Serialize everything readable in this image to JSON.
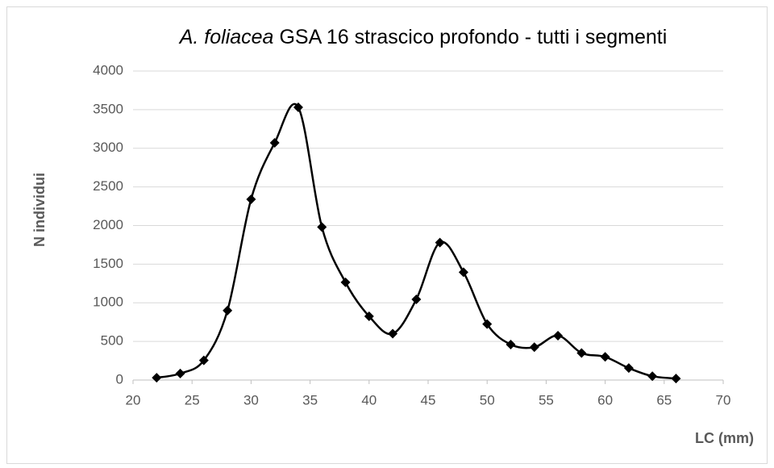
{
  "chart_data": {
    "type": "line",
    "title": [
      "A. foliacea",
      "GSA 16 strascico profondo - tutti i segmenti"
    ],
    "x_label": "LC (mm)",
    "y_label": "N individui",
    "x": [
      22,
      24,
      26,
      28,
      30,
      32,
      34,
      36,
      38,
      40,
      42,
      44,
      46,
      48,
      50,
      52,
      54,
      56,
      58,
      60,
      62,
      64,
      66
    ],
    "series": [
      {
        "name": "N individui",
        "color": "#000000",
        "values": [
          30,
          85,
          255,
          900,
          2340,
          3070,
          3530,
          1980,
          1265,
          825,
          600,
          1045,
          1780,
          1395,
          725,
          460,
          425,
          575,
          350,
          300,
          155,
          50,
          20
        ]
      }
    ],
    "smooth": true,
    "marker": "diamond",
    "xlim": [
      20,
      70
    ],
    "xticks": [
      20,
      25,
      30,
      35,
      40,
      45,
      50,
      55,
      60,
      65,
      70
    ],
    "ylim": [
      0,
      4000
    ],
    "yticks": [
      0,
      500,
      1000,
      1500,
      2000,
      2500,
      3000,
      3500,
      4000
    ],
    "grid": true
  }
}
